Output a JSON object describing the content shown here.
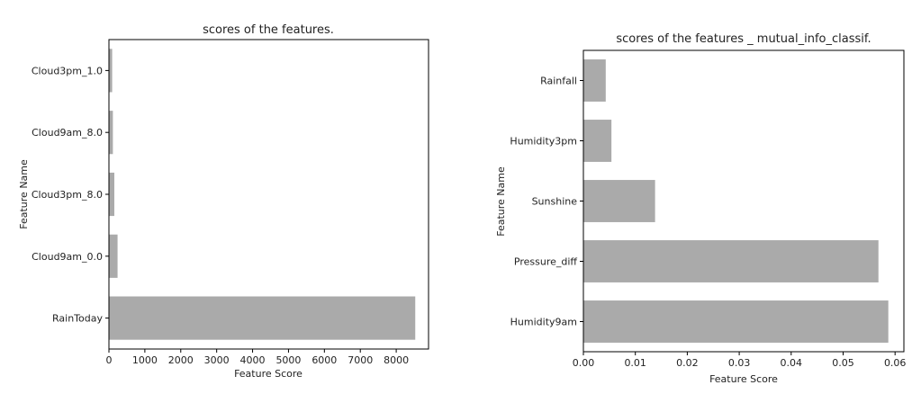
{
  "chart_data": [
    {
      "type": "bar",
      "orientation": "horizontal",
      "title": "scores of the features.",
      "xlabel": "Feature Score",
      "ylabel": "Feature Name",
      "categories": [
        "RainToday",
        "Cloud9am_0.0",
        "Cloud3pm_8.0",
        "Cloud9am_8.0",
        "Cloud3pm_1.0"
      ],
      "values": [
        8530,
        240,
        150,
        110,
        90
      ],
      "xlim": [
        0,
        8900
      ],
      "xticks": [
        0,
        1000,
        2000,
        3000,
        4000,
        5000,
        6000,
        7000,
        8000
      ],
      "bar_color": "#aaaaaa",
      "grid": false
    },
    {
      "type": "bar",
      "orientation": "horizontal",
      "title": "scores of the features _ mutual_info_classif.",
      "xlabel": "Feature Score",
      "ylabel": "Feature Name",
      "categories": [
        "Humidity9am",
        "Pressure_diff",
        "Sunshine",
        "Humidity3pm",
        "Rainfall"
      ],
      "values": [
        0.0587,
        0.0568,
        0.0138,
        0.0054,
        0.0043
      ],
      "xlim": [
        0,
        0.0617
      ],
      "xticks": [
        0.0,
        0.01,
        0.02,
        0.03,
        0.04,
        0.05,
        0.06
      ],
      "xtick_labels": [
        "0.00",
        "0.01",
        "0.02",
        "0.03",
        "0.04",
        "0.05",
        "0.06"
      ],
      "bar_color": "#aaaaaa",
      "grid": false
    }
  ]
}
